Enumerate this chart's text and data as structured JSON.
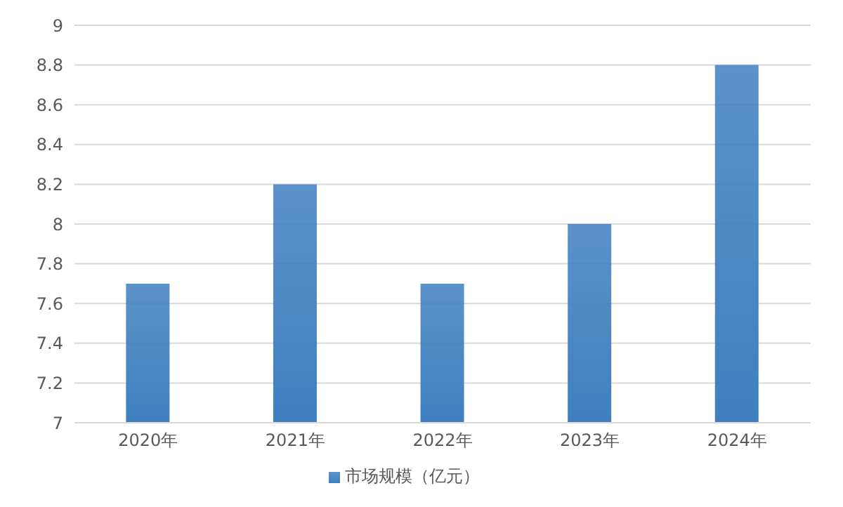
{
  "chart_data": {
    "type": "bar",
    "categories": [
      "2020年",
      "2021年",
      "2022年",
      "2023年",
      "2024年"
    ],
    "series": [
      {
        "name": "市场规模（亿元）",
        "color": "#3f7fc0",
        "values": [
          7.7,
          8.2,
          7.7,
          8.0,
          8.8
        ]
      }
    ],
    "ylim": [
      7,
      9
    ],
    "yticks": [
      7,
      7.2,
      7.4,
      7.6,
      7.8,
      8,
      8.2,
      8.4,
      8.6,
      8.8,
      9
    ],
    "grid": "y",
    "legend": "bottom"
  }
}
